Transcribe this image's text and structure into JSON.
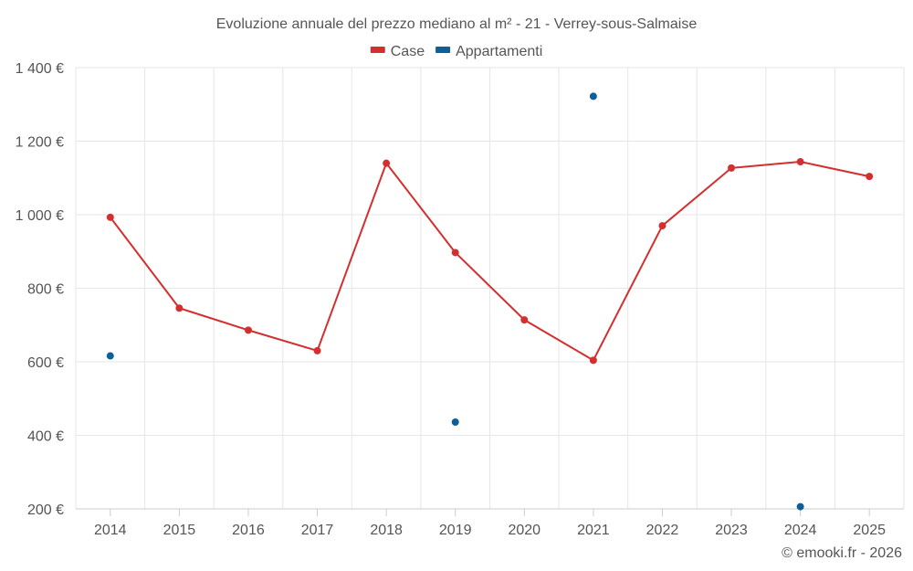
{
  "chart_data": {
    "type": "line",
    "title": "Evoluzione annuale del prezzo mediano al m² - 21 - Verrey-sous-Salmaise",
    "categories": [
      "2014",
      "2015",
      "2016",
      "2017",
      "2018",
      "2019",
      "2020",
      "2021",
      "2022",
      "2023",
      "2024",
      "2025"
    ],
    "series": [
      {
        "name": "Case",
        "color": "#d32f2f",
        "style": "line-with-markers",
        "values": [
          993,
          746,
          686,
          630,
          1140,
          897,
          714,
          604,
          970,
          1127,
          1144,
          1104
        ]
      },
      {
        "name": "Appartamenti",
        "color": "#0d5f97",
        "style": "markers-only",
        "values": [
          616,
          null,
          null,
          null,
          null,
          436,
          null,
          1322,
          null,
          null,
          206,
          null
        ]
      }
    ],
    "y_ticks": [
      200,
      400,
      600,
      800,
      1000,
      1200,
      1400
    ],
    "y_tick_labels": [
      "200 €",
      "400 €",
      "600 €",
      "800 €",
      "1 000 €",
      "1 200 €",
      "1 400 €"
    ],
    "ylim": [
      200,
      1400
    ],
    "xlabel": "",
    "ylabel": "",
    "grid": true,
    "legend_position": "top-center"
  },
  "credit": "© emooki.fr - 2026"
}
